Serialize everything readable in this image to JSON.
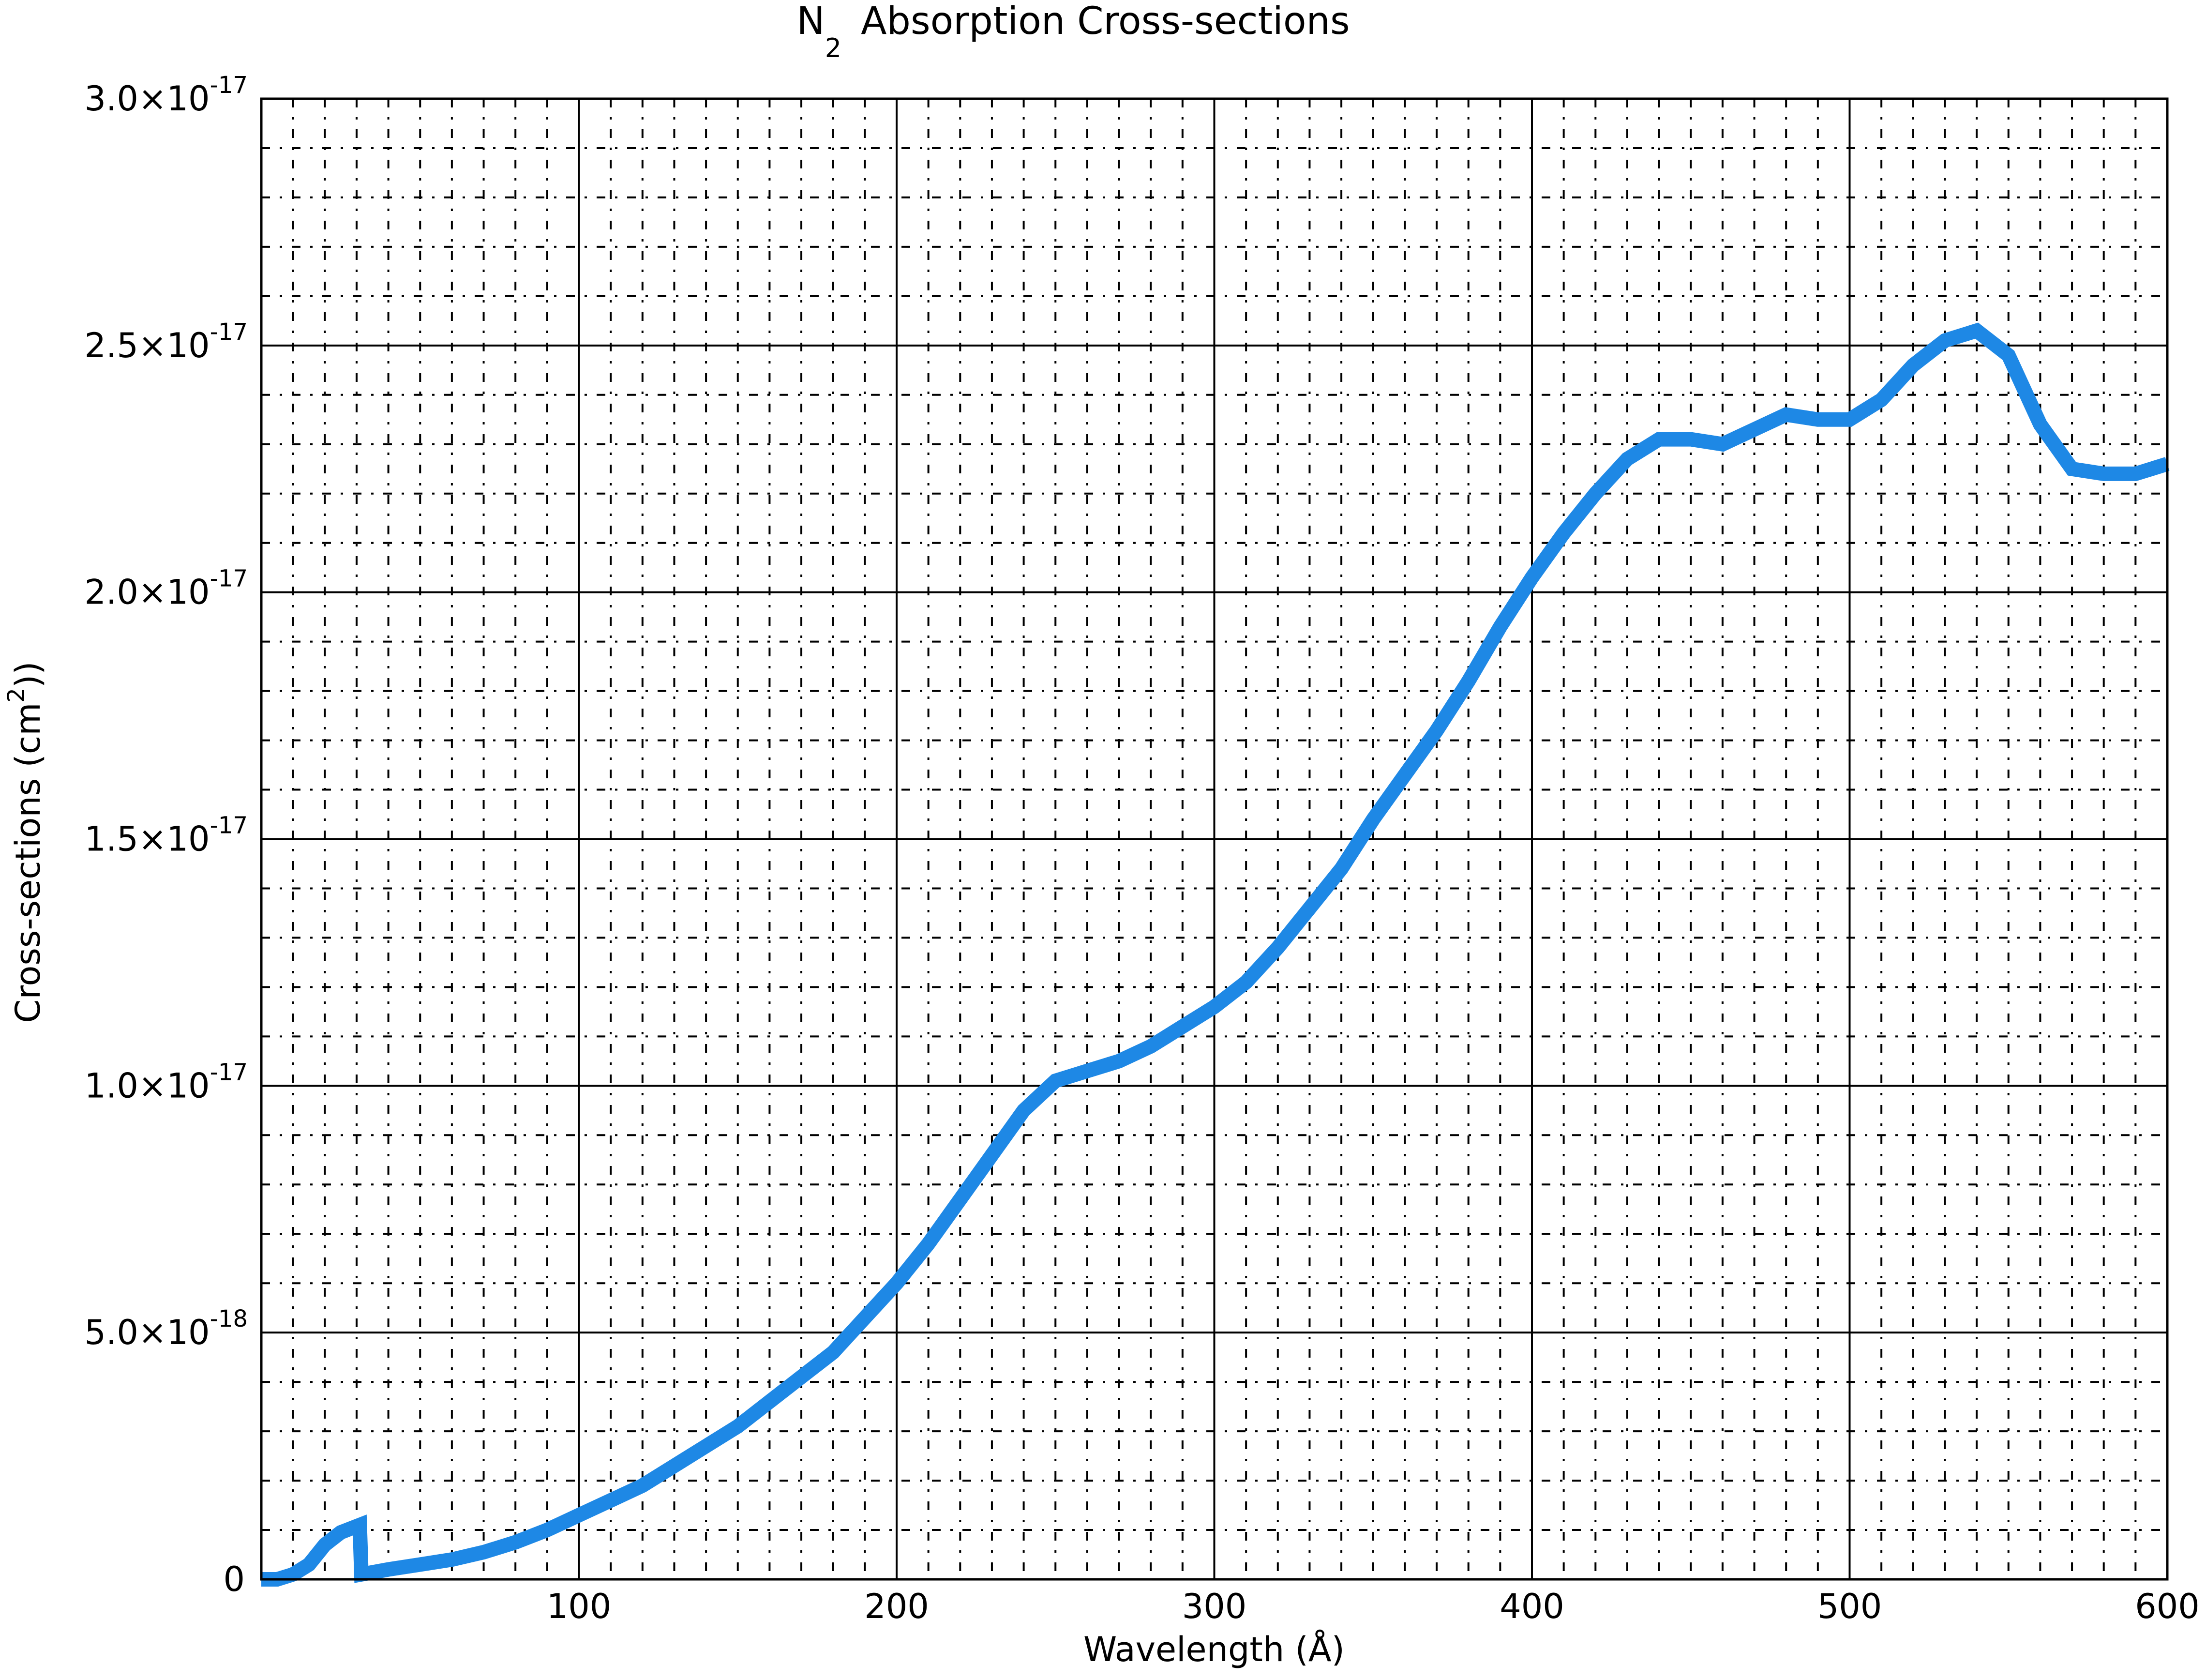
{
  "chart_data": {
    "type": "line",
    "title": "N₂ Absorption Cross-sections",
    "title_parts": {
      "base": "N",
      "subscript": "2",
      "rest": "Absorption Cross-sections"
    },
    "xlabel": "Wavelength (Å)",
    "ylabel": "Cross-sections (cm²))",
    "ylabel_parts": {
      "base": "Cross-sections (cm",
      "superscript": "2",
      "rest": "))"
    },
    "xlim": [
      0,
      600
    ],
    "ylim": [
      0,
      3e-17
    ],
    "x_ticks": [
      {
        "value": 100,
        "label": "100"
      },
      {
        "value": 200,
        "label": "200"
      },
      {
        "value": 300,
        "label": "300"
      },
      {
        "value": 400,
        "label": "400"
      },
      {
        "value": 500,
        "label": "500"
      },
      {
        "value": 600,
        "label": "600"
      }
    ],
    "y_ticks": [
      {
        "value": 0,
        "label": "0"
      },
      {
        "value": 5e-18,
        "mantissa": "5.0×10",
        "exponent": "-18"
      },
      {
        "value": 1e-17,
        "mantissa": "1.0×10",
        "exponent": "-17"
      },
      {
        "value": 1.5e-17,
        "mantissa": "1.5×10",
        "exponent": "-17"
      },
      {
        "value": 2e-17,
        "mantissa": "2.0×10",
        "exponent": "-17"
      },
      {
        "value": 2.5e-17,
        "mantissa": "2.5×10",
        "exponent": "-17"
      },
      {
        "value": 3e-17,
        "mantissa": "3.0×10",
        "exponent": "-17"
      }
    ],
    "grid": {
      "major": true,
      "minor": true,
      "minor_style": "dash-dot"
    },
    "series": [
      {
        "color": "#1e88e5",
        "x": [
          0,
          5,
          10,
          15,
          20,
          25,
          31,
          31.5,
          40,
          50,
          60,
          70,
          80,
          90,
          100,
          110,
          120,
          130,
          140,
          150,
          160,
          170,
          180,
          190,
          200,
          210,
          220,
          230,
          240,
          250,
          260,
          270,
          280,
          290,
          300,
          310,
          320,
          330,
          340,
          350,
          360,
          370,
          380,
          390,
          400,
          410,
          420,
          430,
          440,
          450,
          460,
          470,
          480,
          490,
          500,
          505,
          510,
          520,
          530,
          540,
          550,
          560,
          570,
          580,
          590,
          600
        ],
        "y": [
          0,
          0,
          1e-19,
          3e-19,
          7e-19,
          9.5e-19,
          1.1e-18,
          1e-19,
          2e-19,
          3e-19,
          4e-19,
          5.5e-19,
          7.5e-19,
          1e-18,
          1.3e-18,
          1.6e-18,
          1.9e-18,
          2.3e-18,
          2.7e-18,
          3.1e-18,
          3.6e-18,
          4.1e-18,
          4.6e-18,
          5.3e-18,
          6e-18,
          6.8e-18,
          7.7e-18,
          8.6e-18,
          9.5e-18,
          1.01e-17,
          1.03e-17,
          1.05e-17,
          1.08e-17,
          1.12e-17,
          1.16e-17,
          1.21e-17,
          1.28e-17,
          1.36e-17,
          1.44e-17,
          1.54e-17,
          1.63e-17,
          1.72e-17,
          1.82e-17,
          1.93e-17,
          2.03e-17,
          2.12e-17,
          2.2e-17,
          2.27e-17,
          2.31e-17,
          2.31e-17,
          2.3e-17,
          2.33e-17,
          2.36e-17,
          2.35e-17,
          2.35e-17,
          2.37e-17,
          2.39e-17,
          2.46e-17,
          2.51e-17,
          2.53e-17,
          2.48e-17,
          2.34e-17,
          2.25e-17,
          2.24e-17,
          2.24e-17,
          2.26e-17
        ]
      }
    ]
  }
}
